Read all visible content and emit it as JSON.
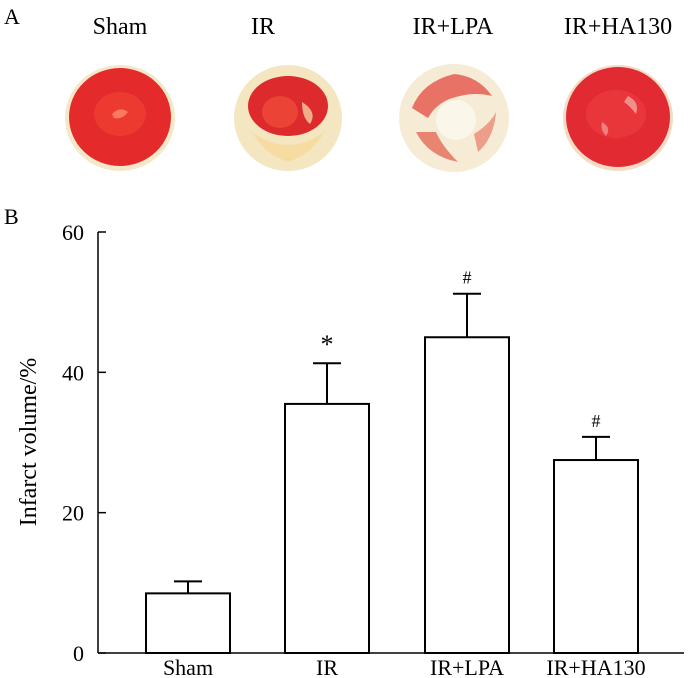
{
  "panel_a_letter": "A",
  "panel_b_letter": "B",
  "photos": [
    {
      "label": "Sham",
      "kind": "red"
    },
    {
      "label": "IR",
      "kind": "infarct"
    },
    {
      "label": "IR+LPA",
      "kind": "pale"
    },
    {
      "label": "IR+HA130",
      "kind": "red"
    }
  ],
  "colors": {
    "tissue_red": "#e8222b",
    "tissue_pale": "#f4ecd0",
    "bar_fill": "#ffffff",
    "ink": "#000000"
  },
  "chart_data": {
    "type": "bar",
    "categories": [
      "Sham",
      "IR",
      "IR+LPA",
      "IR+HA130"
    ],
    "values": [
      8.5,
      35.5,
      45.0,
      27.5
    ],
    "errors": [
      1.7,
      5.8,
      6.2,
      3.3
    ],
    "annotations": [
      "",
      "*",
      "#",
      "#"
    ],
    "xlabel": "",
    "ylabel": "Infarct volume/%",
    "ylim": [
      0,
      60
    ],
    "yticks": [
      0,
      20,
      40,
      60
    ]
  }
}
